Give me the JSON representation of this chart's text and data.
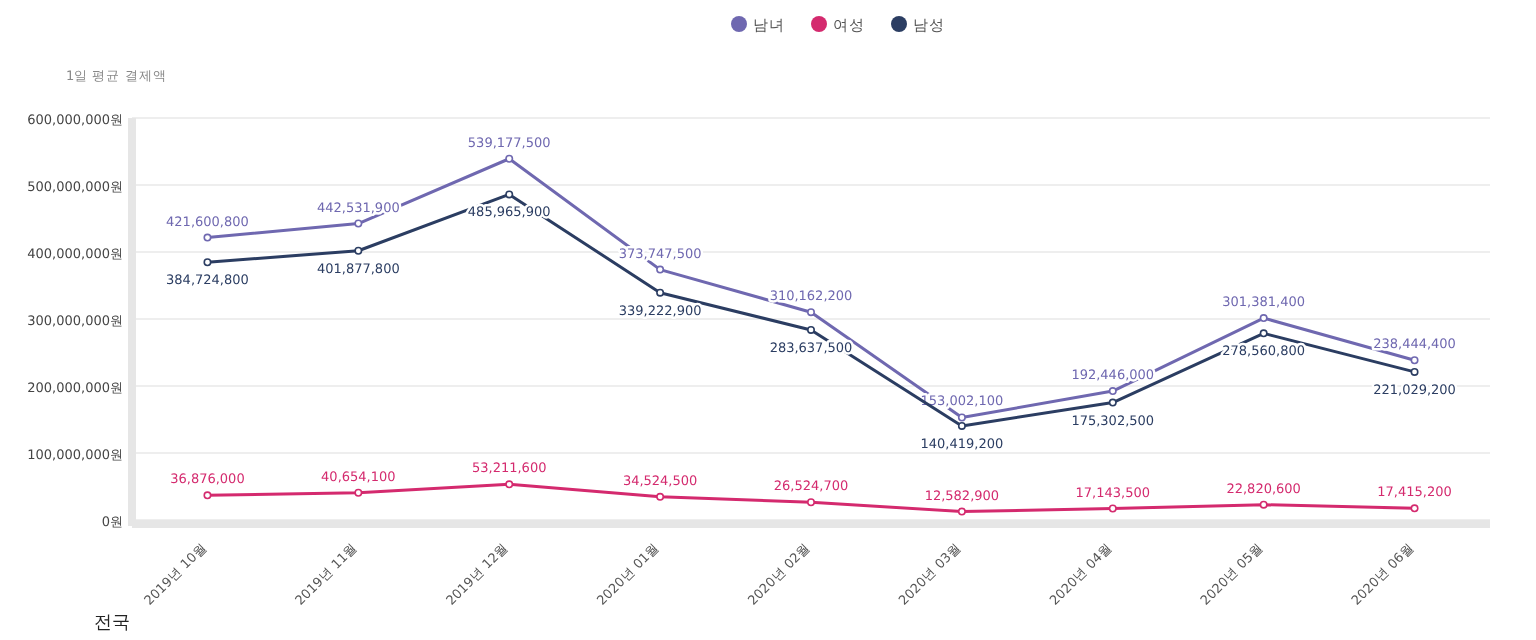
{
  "chart_data": {
    "type": "line",
    "ylabel": "1일 평균 결제액",
    "categories": [
      "2019년 10월",
      "2019년 11월",
      "2019년 12월",
      "2020년 01월",
      "2020년 02월",
      "2020년 03월",
      "2020년 04월",
      "2020년 05월",
      "2020년 06월"
    ],
    "series": [
      {
        "name": "남녀",
        "color": "#6f68b0",
        "values": [
          421600800,
          442531900,
          539177500,
          373747500,
          310162200,
          153002100,
          192446000,
          301381400,
          238444400
        ],
        "value_labels": [
          "421,600,800",
          "442,531,900",
          "539,177,500",
          "373,747,500",
          "310,162,200",
          "153,002,100",
          "192,446,000",
          "301,381,400",
          "238,444,400"
        ]
      },
      {
        "name": "여성",
        "color": "#d42a6e",
        "values": [
          36876000,
          40654100,
          53211600,
          34524500,
          26524700,
          12582900,
          17143500,
          22820600,
          17415200
        ],
        "value_labels": [
          "36,876,000",
          "40,654,100",
          "53,211,600",
          "34,524,500",
          "26,524,700",
          "12,582,900",
          "17,143,500",
          "22,820,600",
          "17,415,200"
        ]
      },
      {
        "name": "남성",
        "color": "#2b3d62",
        "values": [
          384724800,
          401877800,
          485965900,
          339222900,
          283637500,
          140419200,
          175302500,
          278560800,
          221029200
        ],
        "value_labels": [
          "384,724,800",
          "401,877,800",
          "485,965,900",
          "339,222,900",
          "283,637,500",
          "140,419,200",
          "175,302,500",
          "278,560,800",
          "221,029,200"
        ]
      }
    ],
    "ylim": [
      0,
      600000000
    ],
    "yticks": [
      {
        "value": 0,
        "label": "0원"
      },
      {
        "value": 100000000,
        "label": "100,000,000원"
      },
      {
        "value": 200000000,
        "label": "200,000,000원"
      },
      {
        "value": 300000000,
        "label": "300,000,000원"
      },
      {
        "value": 400000000,
        "label": "400,000,000원"
      },
      {
        "value": 500000000,
        "label": "500,000,000원"
      },
      {
        "value": 600000000,
        "label": "600,000,000원"
      }
    ],
    "grid": "y",
    "legend": "top",
    "marker": "circle",
    "line_style": "solid",
    "annotations": [
      "전국"
    ]
  }
}
